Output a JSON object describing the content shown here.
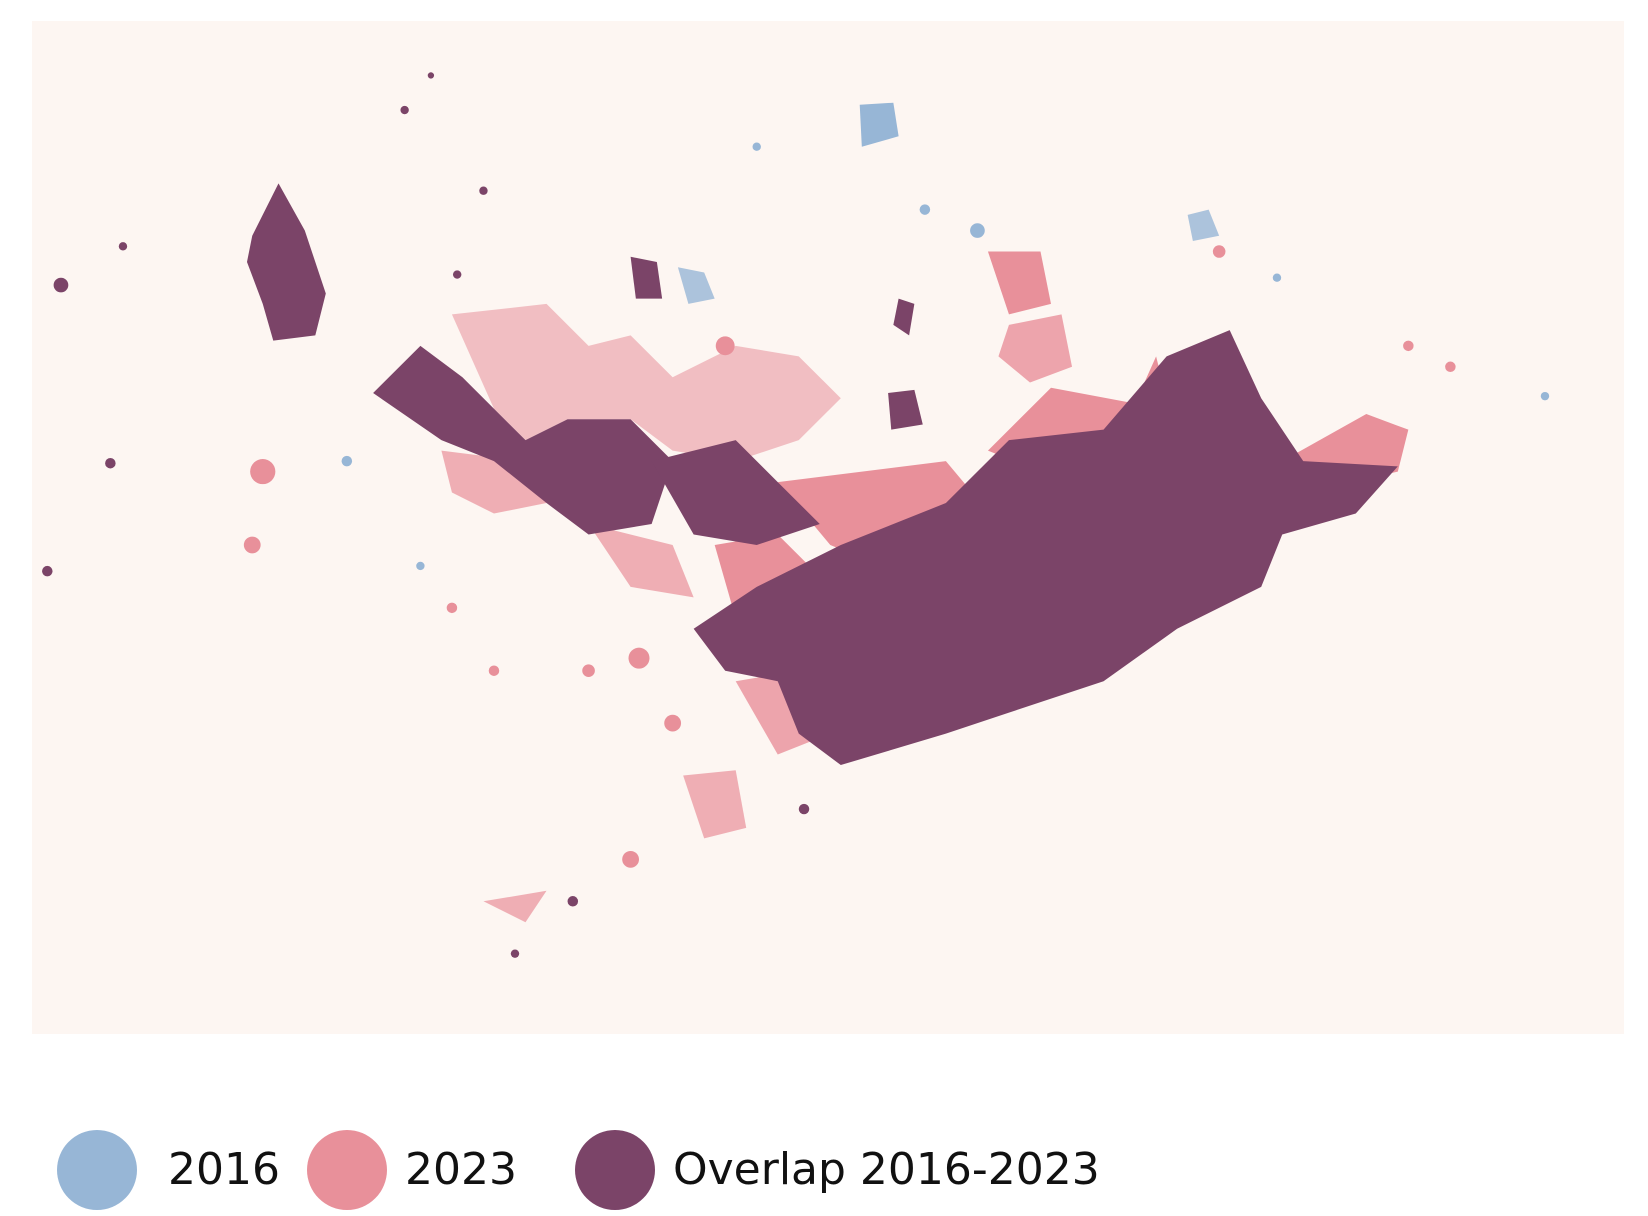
{
  "legend": {
    "items": [
      {
        "label": "2016",
        "color": "#97b6d6"
      },
      {
        "label": "2023",
        "color": "#e8909a"
      },
      {
        "label": "Overlap 2016-2023",
        "color": "#7b4468"
      }
    ]
  }
}
